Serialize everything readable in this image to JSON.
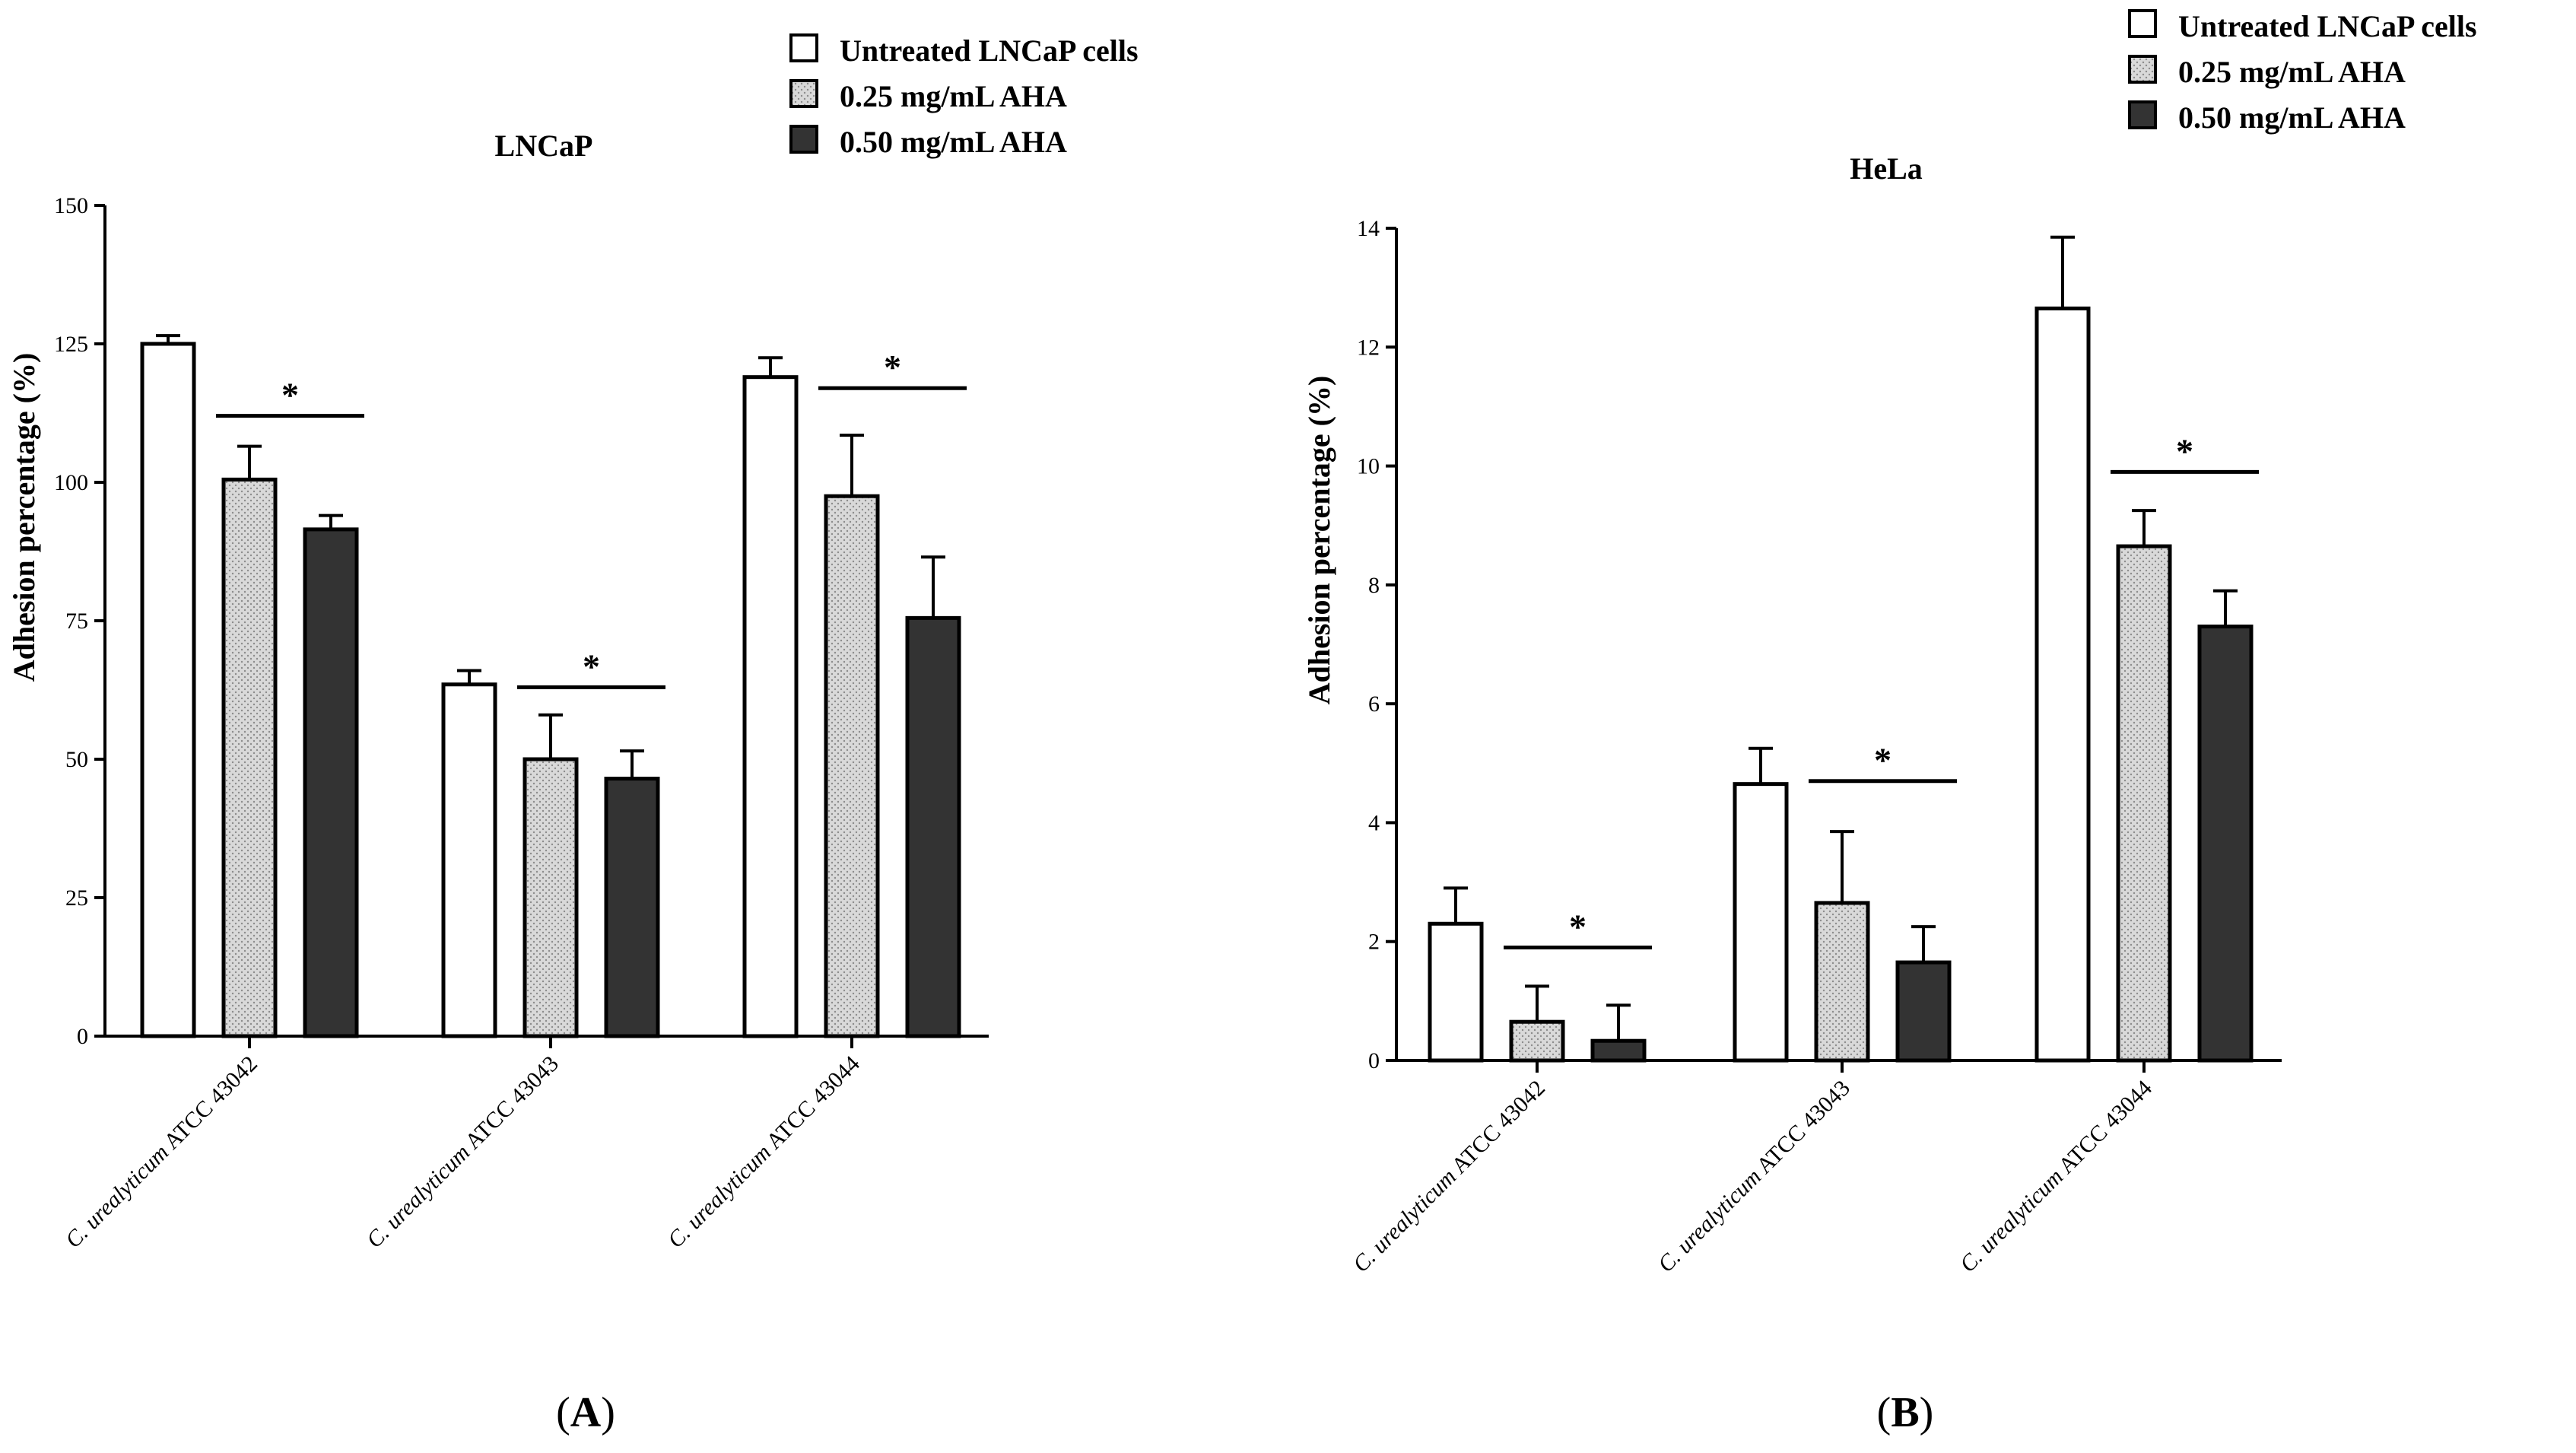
{
  "panel_labels": [
    {
      "open": "(",
      "letter": "A",
      "close": ")"
    },
    {
      "open": "(",
      "letter": "B",
      "close": ")"
    }
  ],
  "legend": [
    {
      "label": "Untreated LNCaP cells",
      "fill": "pattern-white"
    },
    {
      "label": "0.25 mg/mL AHA",
      "fill": "pattern-dots"
    },
    {
      "label": "0.50 mg/mL AHA",
      "fill": "pattern-dark"
    }
  ],
  "colors": {
    "untreated": "#ffffff",
    "aha025": "#d9d9d9",
    "aha050": "#333333",
    "axis": "#000000"
  },
  "chart_data": [
    {
      "type": "bar",
      "title": "LNCaP",
      "ylabel": "Adhesion percentage (%)",
      "xlabel": "",
      "ylim": [
        0,
        150
      ],
      "yticks": [
        0,
        25,
        50,
        75,
        100,
        125,
        150
      ],
      "categories": [
        {
          "italic": "C. urealyticum",
          "rest": " ATCC 43042"
        },
        {
          "italic": "C. urealyticum",
          "rest": " ATCC 43043"
        },
        {
          "italic": "C. urealyticum",
          "rest": " ATCC 43044"
        }
      ],
      "series": [
        {
          "name": "Untreated LNCaP cells",
          "values": [
            125,
            63.5,
            119
          ],
          "errors": [
            1.5,
            2.5,
            3.5
          ]
        },
        {
          "name": "0.25 mg/mL AHA",
          "values": [
            100.5,
            50,
            97.5
          ],
          "errors": [
            6,
            8,
            11
          ]
        },
        {
          "name": "0.50 mg/mL AHA",
          "values": [
            91.5,
            46.5,
            75.5
          ],
          "errors": [
            2.5,
            5,
            11
          ]
        }
      ],
      "significance": [
        {
          "category": 0,
          "from_series": 1,
          "to_series": 2,
          "y": 112,
          "label": "*"
        },
        {
          "category": 1,
          "from_series": 1,
          "to_series": 2,
          "y": 63,
          "label": "*"
        },
        {
          "category": 2,
          "from_series": 1,
          "to_series": 2,
          "y": 117,
          "label": "*"
        }
      ],
      "legend_position": "top-right"
    },
    {
      "type": "bar",
      "title": "HeLa",
      "ylabel": "Adhesion percentage (%)",
      "xlabel": "",
      "ylim": [
        0,
        14
      ],
      "yticks": [
        0,
        2,
        4,
        6,
        8,
        10,
        12,
        14
      ],
      "categories": [
        {
          "italic": "C. urealyticum",
          "rest": " ATCC 43042"
        },
        {
          "italic": "C. urealyticum",
          "rest": " ATCC 43043"
        },
        {
          "italic": "C. urealyticum",
          "rest": " ATCC 43044"
        }
      ],
      "series": [
        {
          "name": "Untreated LNCaP cells",
          "values": [
            2.3,
            4.65,
            12.65
          ],
          "errors": [
            0.6,
            0.6,
            1.2
          ]
        },
        {
          "name": "0.25 mg/mL AHA",
          "values": [
            0.65,
            2.65,
            8.65
          ],
          "errors": [
            0.6,
            1.2,
            0.6
          ]
        },
        {
          "name": "0.50 mg/mL AHA",
          "values": [
            0.33,
            1.65,
            7.3
          ],
          "errors": [
            0.6,
            0.6,
            0.6
          ]
        }
      ],
      "significance": [
        {
          "category": 0,
          "from_series": 1,
          "to_series": 2,
          "y": 1.9,
          "label": "*"
        },
        {
          "category": 1,
          "from_series": 1,
          "to_series": 2,
          "y": 4.7,
          "label": "*"
        },
        {
          "category": 2,
          "from_series": 1,
          "to_series": 2,
          "y": 9.9,
          "label": "*"
        }
      ],
      "legend_position": "top-right"
    }
  ]
}
